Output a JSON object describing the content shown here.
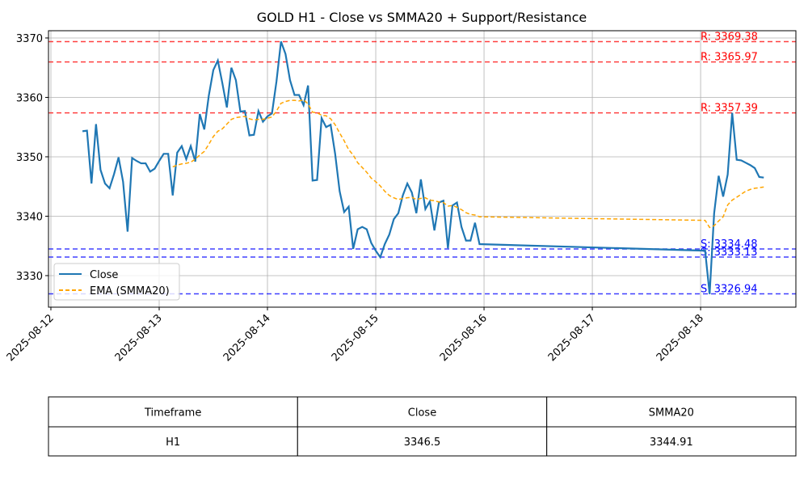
{
  "chart_data": {
    "type": "line",
    "title": "GOLD H1 - Close vs SMMA20 + Support/Resistance",
    "x": [
      "2025-08-12 07:00",
      "2025-08-12 08:00",
      "2025-08-12 09:00",
      "2025-08-12 10:00",
      "2025-08-12 11:00",
      "2025-08-12 12:00",
      "2025-08-12 13:00",
      "2025-08-12 14:00",
      "2025-08-12 15:00",
      "2025-08-12 16:00",
      "2025-08-12 17:00",
      "2025-08-12 18:00",
      "2025-08-12 19:00",
      "2025-08-12 20:00",
      "2025-08-12 21:00",
      "2025-08-12 22:00",
      "2025-08-12 23:00",
      "2025-08-13 00:00",
      "2025-08-13 01:00",
      "2025-08-13 02:00",
      "2025-08-13 03:00",
      "2025-08-13 04:00",
      "2025-08-13 05:00",
      "2025-08-13 06:00",
      "2025-08-13 07:00",
      "2025-08-13 08:00",
      "2025-08-13 09:00",
      "2025-08-13 10:00",
      "2025-08-13 11:00",
      "2025-08-13 12:00",
      "2025-08-13 13:00",
      "2025-08-13 14:00",
      "2025-08-13 15:00",
      "2025-08-13 16:00",
      "2025-08-13 17:00",
      "2025-08-13 18:00",
      "2025-08-13 19:00",
      "2025-08-13 20:00",
      "2025-08-13 21:00",
      "2025-08-13 22:00",
      "2025-08-13 23:00",
      "2025-08-14 00:00",
      "2025-08-14 01:00",
      "2025-08-14 02:00",
      "2025-08-14 03:00",
      "2025-08-14 04:00",
      "2025-08-14 05:00",
      "2025-08-14 06:00",
      "2025-08-14 07:00",
      "2025-08-14 08:00",
      "2025-08-14 09:00",
      "2025-08-14 10:00",
      "2025-08-14 11:00",
      "2025-08-14 12:00",
      "2025-08-14 13:00",
      "2025-08-14 14:00",
      "2025-08-14 15:00",
      "2025-08-14 16:00",
      "2025-08-14 17:00",
      "2025-08-14 18:00",
      "2025-08-14 19:00",
      "2025-08-14 20:00",
      "2025-08-14 21:00",
      "2025-08-14 22:00",
      "2025-08-14 23:00",
      "2025-08-15 00:00",
      "2025-08-15 01:00",
      "2025-08-15 02:00",
      "2025-08-15 03:00",
      "2025-08-15 04:00",
      "2025-08-15 05:00",
      "2025-08-15 06:00",
      "2025-08-15 07:00",
      "2025-08-15 08:00",
      "2025-08-15 09:00",
      "2025-08-15 10:00",
      "2025-08-15 11:00",
      "2025-08-15 12:00",
      "2025-08-15 13:00",
      "2025-08-15 14:00",
      "2025-08-15 15:00",
      "2025-08-15 16:00",
      "2025-08-15 17:00",
      "2025-08-15 18:00",
      "2025-08-15 19:00",
      "2025-08-15 20:00",
      "2025-08-15 21:00",
      "2025-08-15 22:00",
      "2025-08-15 23:00",
      "2025-08-18 01:00",
      "2025-08-18 02:00",
      "2025-08-18 03:00",
      "2025-08-18 04:00",
      "2025-08-18 05:00",
      "2025-08-18 06:00",
      "2025-08-18 07:00",
      "2025-08-18 08:00",
      "2025-08-18 09:00",
      "2025-08-18 10:00",
      "2025-08-18 11:00",
      "2025-08-18 12:00",
      "2025-08-18 13:00",
      "2025-08-18 14:00"
    ],
    "series": [
      {
        "name": "Close",
        "color": "#1f77b4",
        "style": "solid",
        "values": [
          3354.3,
          3354.4,
          3345.5,
          3355.5,
          3347.8,
          3345.5,
          3344.7,
          3347.1,
          3349.9,
          3345.8,
          3337.4,
          3349.8,
          3349.3,
          3348.9,
          3348.9,
          3347.5,
          3348.0,
          3349.3,
          3350.5,
          3350.5,
          3343.5,
          3350.7,
          3351.8,
          3349.6,
          3351.8,
          3349.2,
          3357.2,
          3354.6,
          3360.3,
          3364.6,
          3366.2,
          3362.4,
          3358.3,
          3365.0,
          3362.9,
          3357.6,
          3357.7,
          3353.6,
          3353.7,
          3357.7,
          3355.9,
          3356.8,
          3357.3,
          3362.7,
          3369.4,
          3367.3,
          3362.9,
          3360.4,
          3360.4,
          3358.7,
          3362.0,
          3346.0,
          3346.1,
          3356.5,
          3355.0,
          3355.4,
          3350.5,
          3344.2,
          3340.7,
          3341.6,
          3334.5,
          3337.8,
          3338.2,
          3337.8,
          3335.5,
          3334.2,
          3333.1,
          3335.3,
          3336.9,
          3339.5,
          3340.5,
          3343.5,
          3345.5,
          3344.0,
          3340.5,
          3346.2,
          3341.2,
          3342.5,
          3337.6,
          3342.3,
          3342.6,
          3334.6,
          3341.8,
          3342.3,
          3338.2,
          3335.9,
          3335.9,
          3338.9,
          3335.3,
          3334.2,
          3326.9,
          3340.5,
          3346.8,
          3343.3,
          3347.0,
          3357.4,
          3349.5,
          3349.4,
          3349.0,
          3348.6,
          3348.1,
          3346.6,
          3346.5
        ]
      },
      {
        "name": "EMA (SMMA20)",
        "color": "orange",
        "style": "dashed",
        "values": [
          null,
          null,
          null,
          null,
          null,
          null,
          null,
          null,
          null,
          null,
          null,
          null,
          null,
          null,
          null,
          null,
          null,
          null,
          null,
          null,
          3348.3,
          3348.6,
          3348.8,
          3348.9,
          3349.1,
          3349.6,
          3350.3,
          3350.9,
          3352.1,
          3353.4,
          3354.3,
          3354.7,
          3355.5,
          3356.3,
          3356.6,
          3356.7,
          3356.8,
          3356.4,
          3356.2,
          3356.3,
          3356.3,
          3356.5,
          3356.7,
          3357.7,
          3359.0,
          3359.3,
          3359.5,
          3359.5,
          3359.4,
          3359.6,
          3358.9,
          3357.5,
          3357.4,
          3357.0,
          3356.9,
          3356.4,
          3355.4,
          3354.0,
          3352.7,
          3351.2,
          3350.3,
          3349.0,
          3348.2,
          3347.4,
          3346.4,
          3345.8,
          3345.1,
          3344.2,
          3343.5,
          3343.1,
          3342.8,
          3343.0,
          3343.1,
          3343.2,
          3342.8,
          3343.0,
          3343.1,
          3342.7,
          3342.6,
          3342.4,
          3342.3,
          3341.7,
          3341.8,
          3341.5,
          3341.1,
          3340.6,
          3340.3,
          3340.2,
          3339.9,
          3339.3,
          3338.1,
          3338.4,
          3339.2,
          3339.9,
          3341.9,
          3342.7,
          3343.2,
          3343.7,
          3344.2,
          3344.5,
          3344.7,
          3344.8,
          3344.91
        ]
      }
    ],
    "levels": [
      {
        "value": 3369.38,
        "label": "R: 3369.38",
        "color": "red"
      },
      {
        "value": 3365.97,
        "label": "R: 3365.97",
        "color": "red"
      },
      {
        "value": 3357.39,
        "label": "R: 3357.39",
        "color": "red"
      },
      {
        "value": 3334.48,
        "label": "S: 3334.48",
        "color": "blue"
      },
      {
        "value": 3333.13,
        "label": "S: 3333.13",
        "color": "blue"
      },
      {
        "value": 3326.94,
        "label": "S: 3326.94",
        "color": "blue"
      }
    ],
    "xlim": [
      "2025-08-11 23:28",
      "2025-08-18 21:07"
    ],
    "xticks": [
      "2025-08-12",
      "2025-08-13",
      "2025-08-14",
      "2025-08-15",
      "2025-08-16",
      "2025-08-17",
      "2025-08-18"
    ],
    "ylim": [
      3324.69,
      3371.22
    ],
    "yticks": [
      3330,
      3340,
      3350,
      3360,
      3370
    ],
    "grid": true,
    "legend": "lower left"
  },
  "table": {
    "header": [
      "Timeframe",
      "Close",
      "SMMA20"
    ],
    "rows": [
      [
        "H1",
        3346.5,
        3344.91
      ]
    ]
  }
}
